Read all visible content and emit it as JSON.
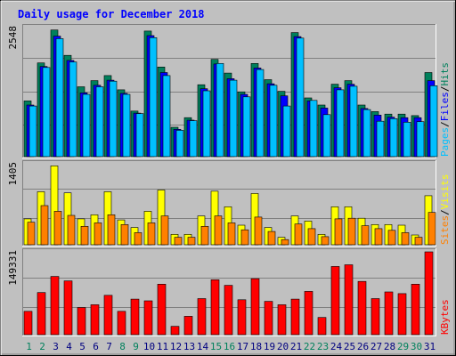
{
  "title": "Daily usage for December 2018",
  "colors": {
    "background": "#c0c0c0",
    "grid": "#808080",
    "title": "#0000ff",
    "hits": "#00805c",
    "files": "#0000ff",
    "pages": "#00c0ff",
    "visits": "#ffff00",
    "sites": "#ff8000",
    "kbytes": "#ff0000",
    "weekend_label": "#00805c",
    "weekday_label": "#000080"
  },
  "chart_data": [
    {
      "type": "bar",
      "legend": [
        "Pages",
        "Files",
        "Hits"
      ],
      "legend_colors": [
        "#00c0ff",
        "#0000ff",
        "#00805c"
      ],
      "y_max_label": "2548",
      "ylim": [
        0,
        2548
      ],
      "categories": [
        "1",
        "2",
        "3",
        "4",
        "5",
        "6",
        "7",
        "8",
        "9",
        "10",
        "11",
        "12",
        "13",
        "14",
        "15",
        "16",
        "17",
        "18",
        "19",
        "20",
        "21",
        "22",
        "23",
        "24",
        "25",
        "26",
        "27",
        "28",
        "29",
        "30",
        "31"
      ],
      "series": [
        {
          "name": "Hits",
          "values": [
            1100,
            1850,
            2500,
            2000,
            1380,
            1500,
            1600,
            1320,
            900,
            2480,
            1770,
            580,
            770,
            1420,
            1920,
            1650,
            1280,
            1840,
            1520,
            1290,
            2450,
            1160,
            1020,
            1430,
            1500,
            1020,
            890,
            840,
            840,
            810,
            1660
          ],
          "color": "#00805c"
        },
        {
          "name": "Files",
          "values": [
            1020,
            1780,
            2380,
            1900,
            1260,
            1410,
            1510,
            1250,
            860,
            2390,
            1660,
            540,
            720,
            1340,
            1830,
            1540,
            1230,
            1750,
            1440,
            1200,
            2370,
            1100,
            960,
            1360,
            1430,
            950,
            820,
            780,
            770,
            770,
            1500
          ],
          "color": "#0000ff"
        },
        {
          "name": "Pages",
          "values": [
            1000,
            1760,
            2330,
            1870,
            1230,
            1380,
            1490,
            1230,
            850,
            2350,
            1600,
            520,
            710,
            1300,
            1840,
            1510,
            1180,
            1720,
            1410,
            1000,
            2340,
            1110,
            830,
            1320,
            1390,
            930,
            700,
            750,
            680,
            690,
            1400
          ],
          "color": "#00c0ff"
        }
      ]
    },
    {
      "type": "bar",
      "legend": [
        "Sites",
        "Visits"
      ],
      "legend_colors": [
        "#ff8000",
        "#ffff00"
      ],
      "y_max_label": "1405",
      "ylim": [
        0,
        1405
      ],
      "categories": [
        "1",
        "2",
        "3",
        "4",
        "5",
        "6",
        "7",
        "8",
        "9",
        "10",
        "11",
        "12",
        "13",
        "14",
        "15",
        "16",
        "17",
        "18",
        "19",
        "20",
        "21",
        "22",
        "23",
        "24",
        "25",
        "26",
        "27",
        "28",
        "29",
        "30",
        "31"
      ],
      "series": [
        {
          "name": "Visits",
          "values": [
            450,
            920,
            1370,
            900,
            450,
            520,
            920,
            430,
            300,
            580,
            950,
            180,
            180,
            500,
            930,
            660,
            340,
            890,
            300,
            130,
            500,
            410,
            180,
            660,
            660,
            460,
            350,
            350,
            340,
            170,
            850
          ],
          "color": "#ffff00"
        },
        {
          "name": "Sites",
          "values": [
            390,
            680,
            580,
            510,
            320,
            380,
            520,
            350,
            210,
            380,
            500,
            130,
            130,
            320,
            500,
            380,
            260,
            480,
            230,
            90,
            360,
            280,
            140,
            450,
            460,
            330,
            280,
            250,
            210,
            130,
            560
          ],
          "color": "#ff8000"
        }
      ]
    },
    {
      "type": "bar",
      "legend": [
        "KBytes"
      ],
      "legend_colors": [
        "#ff0000"
      ],
      "y_max_label": "149331",
      "ylim": [
        0,
        149331
      ],
      "categories": [
        "1",
        "2",
        "3",
        "4",
        "5",
        "6",
        "7",
        "8",
        "9",
        "10",
        "11",
        "12",
        "13",
        "14",
        "15",
        "16",
        "17",
        "18",
        "19",
        "20",
        "21",
        "22",
        "23",
        "24",
        "25",
        "26",
        "27",
        "28",
        "29",
        "30",
        "31"
      ],
      "series": [
        {
          "name": "KBytes",
          "values": [
            42000,
            76000,
            105000,
            97000,
            49000,
            54000,
            71000,
            42000,
            64000,
            61000,
            91000,
            15000,
            33000,
            65000,
            99000,
            89000,
            63000,
            101000,
            60000,
            54000,
            64000,
            78000,
            31000,
            123000,
            126000,
            96000,
            65000,
            77000,
            74000,
            91000,
            149331
          ],
          "color": "#ff0000"
        }
      ]
    }
  ],
  "day_labels": [
    "1",
    "2",
    "3",
    "4",
    "5",
    "6",
    "7",
    "8",
    "9",
    "10",
    "11",
    "12",
    "13",
    "14",
    "15",
    "16",
    "17",
    "18",
    "19",
    "20",
    "21",
    "22",
    "23",
    "24",
    "25",
    "26",
    "27",
    "28",
    "29",
    "30",
    "31"
  ],
  "weekend_days": [
    1,
    2,
    8,
    9,
    15,
    16,
    22,
    23,
    29,
    30
  ]
}
